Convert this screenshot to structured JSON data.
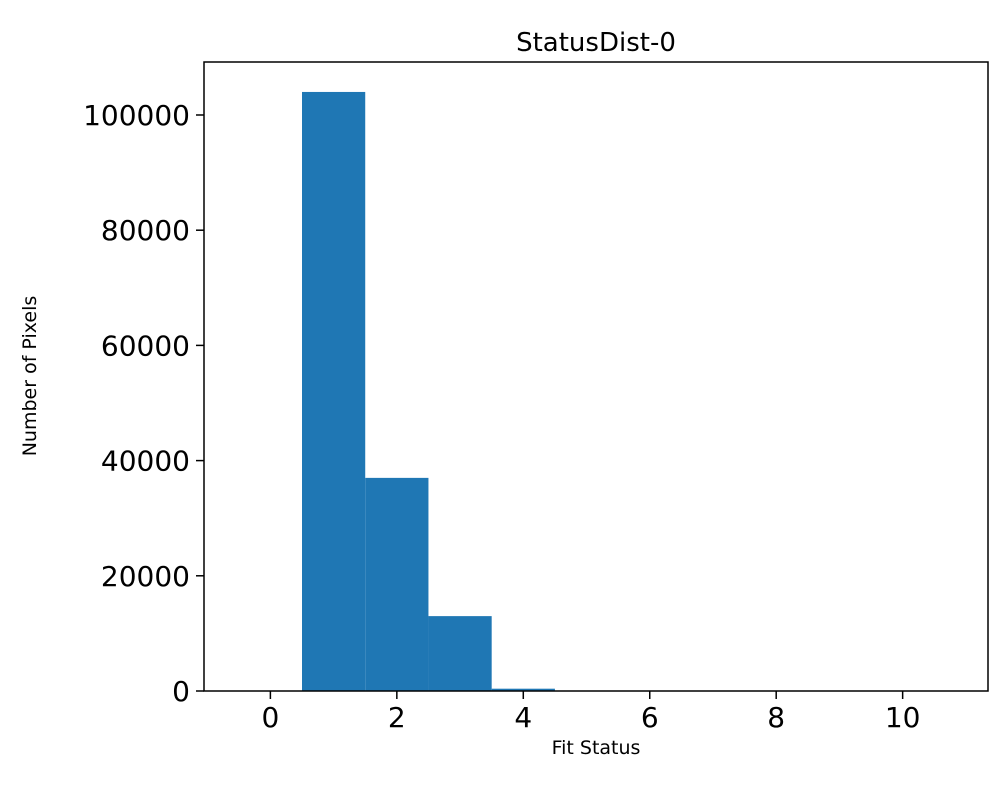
{
  "chart_data": {
    "type": "bar",
    "subtype": "histogram",
    "title": "StatusDist-0",
    "xlabel": "Fit Status",
    "ylabel": "Number of Pixels",
    "bar_color": "#1f77b4",
    "grid": false,
    "xlim": [
      -1.05,
      11.35
    ],
    "ylim": [
      0,
      109200
    ],
    "xticks": [
      0,
      2,
      4,
      6,
      8,
      10
    ],
    "yticks": [
      0,
      20000,
      40000,
      60000,
      80000,
      100000
    ],
    "bins": [
      {
        "x0": 0.5,
        "x1": 1.5,
        "count": 104000
      },
      {
        "x0": 1.5,
        "x1": 2.5,
        "count": 37000
      },
      {
        "x0": 2.5,
        "x1": 3.5,
        "count": 13000
      },
      {
        "x0": 3.5,
        "x1": 4.5,
        "count": 400
      }
    ]
  }
}
